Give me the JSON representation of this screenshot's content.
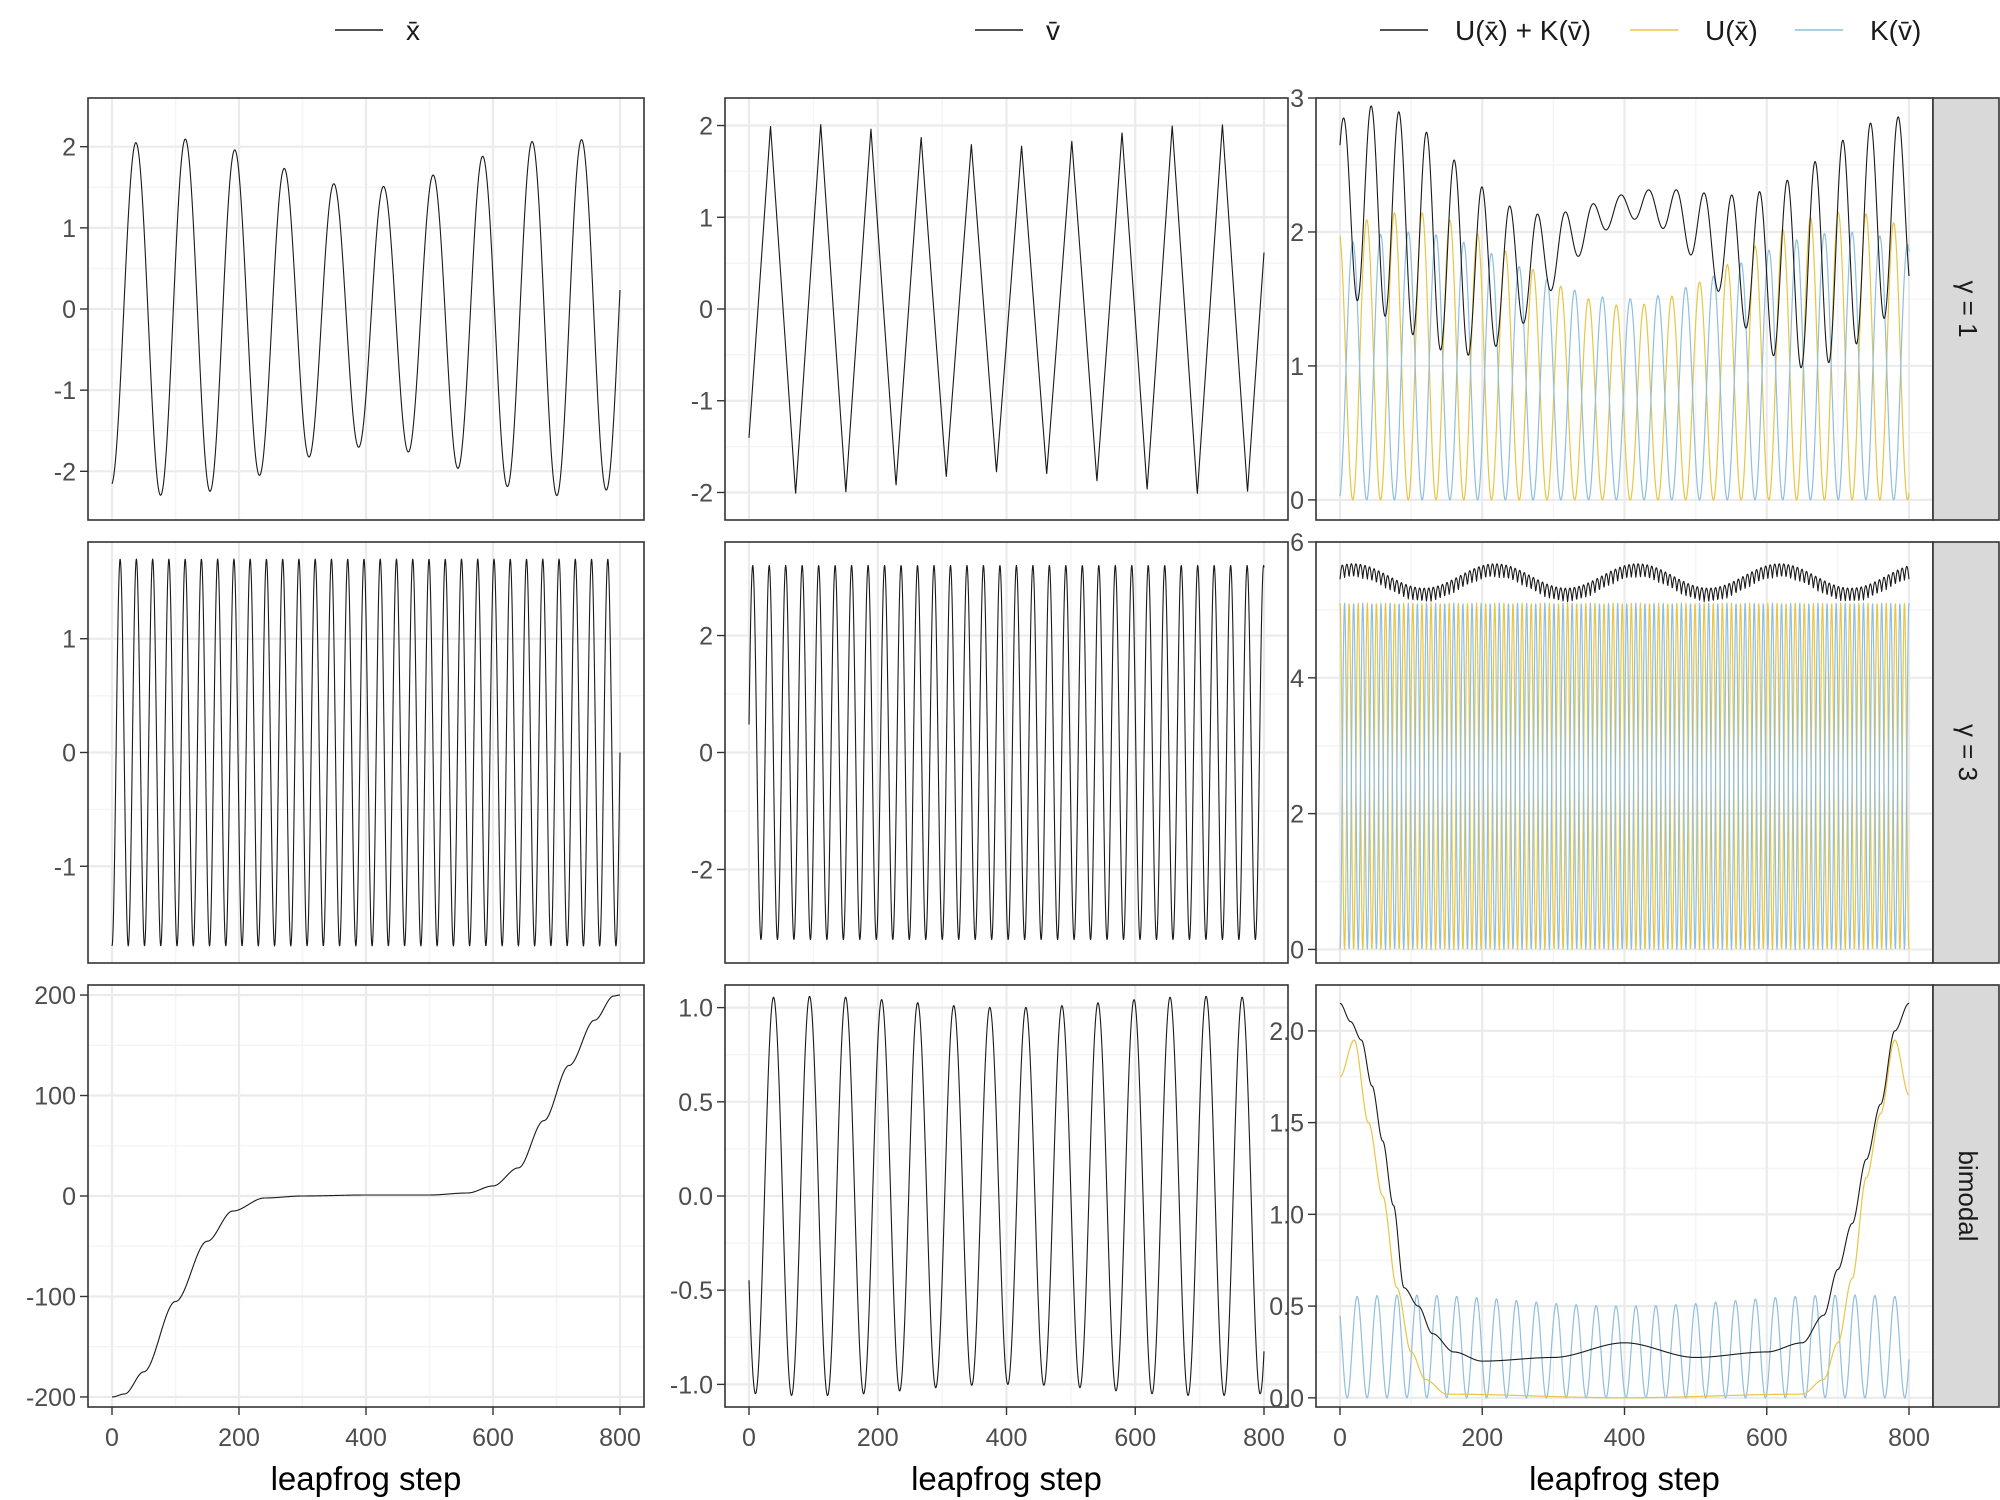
{
  "colors": {
    "black": "#1a1a1a",
    "yellow": "#E8C547",
    "blue": "#8FBFDF",
    "strip_bg": "#D9D9D9",
    "grid_major": "#ebebeb",
    "grid_minor": "#f5f5f5",
    "panel_border": "#333333"
  },
  "legends": [
    {
      "entries": [
        {
          "label": "x̄",
          "color": "#1a1a1a"
        }
      ]
    },
    {
      "entries": [
        {
          "label": "v̄",
          "color": "#1a1a1a"
        }
      ]
    },
    {
      "entries": [
        {
          "label": "U(x̄) + K(v̄)",
          "color": "#1a1a1a"
        },
        {
          "label": "U(x̄)",
          "color": "#E8C547"
        },
        {
          "label": "K(v̄)",
          "color": "#8FBFDF"
        }
      ]
    }
  ],
  "xlabels": [
    "leapfrog step",
    "leapfrog step",
    "leapfrog step"
  ],
  "x_ticks": [
    0,
    200,
    400,
    600,
    800
  ],
  "strip_labels": [
    "γ = 1",
    "γ = 3",
    "bimodal"
  ],
  "chart_data": {
    "type": "line",
    "x_range": [
      0,
      800
    ],
    "panels": [
      {
        "row": 0,
        "col": 0,
        "ylim": [
          -2.6,
          2.6
        ],
        "yticks": [
          -2,
          -1,
          0,
          1,
          2
        ],
        "ytick_labels": [
          "-2",
          "-1",
          "0",
          "1",
          "2"
        ],
        "series": [
          {
            "name": "x̄",
            "color": "#1a1a1a",
            "kind": "sine",
            "x0": 0,
            "x1": 800,
            "offset": -0.1,
            "amp": 1.9,
            "amp_var": 0.3,
            "period": 78,
            "phase": -1.45
          }
        ]
      },
      {
        "row": 0,
        "col": 1,
        "ylim": [
          -2.3,
          2.3
        ],
        "yticks": [
          -2,
          -1,
          0,
          1,
          2
        ],
        "ytick_labels": [
          "-2",
          "-1",
          "0",
          "1",
          "2"
        ],
        "series": [
          {
            "name": "v̄",
            "color": "#1a1a1a",
            "kind": "tri",
            "x0": 0,
            "x1": 800,
            "offset": 0.0,
            "amp": 1.9,
            "amp_var": 0.12,
            "period": 78,
            "phase": 0.45
          }
        ]
      },
      {
        "row": 0,
        "col": 2,
        "ylim": [
          -0.15,
          3.0
        ],
        "yticks": [
          0,
          1,
          2,
          3
        ],
        "ytick_labels": [
          "0",
          "1",
          "2",
          "3"
        ],
        "series": [
          {
            "name": "U(x̄)",
            "color": "#E8C547",
            "kind": "sinsq",
            "x0": 0,
            "x1": 800,
            "amp": 1.8,
            "amp_var": 0.35,
            "period": 78,
            "phase": -1.45
          },
          {
            "name": "K(v̄)",
            "color": "#8FBFDF",
            "kind": "cossq",
            "x0": 0,
            "x1": 800,
            "amp": 1.75,
            "amp_var": 0.25,
            "period": 78,
            "phase": -1.45
          },
          {
            "name": "U(x̄) + K(v̄)",
            "color": "#1a1a1a",
            "kind": "envelope",
            "x0": 0,
            "x1": 800,
            "offset": 1.95,
            "amp": 0.45,
            "amp_var": 0.35,
            "period": 39,
            "phase": 0.8
          }
        ]
      },
      {
        "row": 1,
        "col": 0,
        "ylim": [
          -1.85,
          1.85
        ],
        "yticks": [
          -1,
          0,
          1
        ],
        "ytick_labels": [
          "-1",
          "0",
          "1"
        ],
        "series": [
          {
            "name": "x̄",
            "color": "#1a1a1a",
            "kind": "sine",
            "x0": 0,
            "x1": 800,
            "offset": 0.0,
            "amp": 1.7,
            "amp_var": 0.0,
            "period": 25.6,
            "phase": -1.57
          }
        ]
      },
      {
        "row": 1,
        "col": 1,
        "ylim": [
          -3.6,
          3.6
        ],
        "yticks": [
          -2,
          0,
          2
        ],
        "ytick_labels": [
          "-2",
          "0",
          "2"
        ],
        "series": [
          {
            "name": "v̄",
            "color": "#1a1a1a",
            "kind": "sine",
            "x0": 0,
            "x1": 800,
            "offset": 0.0,
            "amp": 3.2,
            "amp_var": 0.0,
            "period": 25.6,
            "phase": 0.15
          }
        ]
      },
      {
        "row": 1,
        "col": 2,
        "ylim": [
          -0.2,
          6.0
        ],
        "yticks": [
          0,
          2,
          4,
          6
        ],
        "ytick_labels": [
          "0",
          "2",
          "4",
          "6"
        ],
        "series": [
          {
            "name": "U(x̄)",
            "color": "#E8C547",
            "kind": "sinsq",
            "x0": 0,
            "x1": 800,
            "amp": 5.1,
            "amp_var": 0.0,
            "period": 25.6,
            "phase": -1.57
          },
          {
            "name": "K(v̄)",
            "color": "#8FBFDF",
            "kind": "cossq",
            "x0": 0,
            "x1": 800,
            "amp": 5.1,
            "amp_var": 0.0,
            "period": 25.6,
            "phase": -1.57
          },
          {
            "name": "U(x̄) + K(v̄)",
            "color": "#1a1a1a",
            "kind": "beat",
            "x0": 0,
            "x1": 800,
            "offset": 5.3,
            "amp": 0.2,
            "amp_var": 0.0,
            "period": 12.8,
            "phase": 0,
            "beat_period": 400
          }
        ]
      },
      {
        "row": 2,
        "col": 0,
        "ylim": [
          -210,
          210
        ],
        "yticks": [
          -200,
          -100,
          0,
          100,
          200
        ],
        "ytick_labels": [
          "-200",
          "-100",
          "0",
          "100",
          "200"
        ],
        "series": [
          {
            "name": "x̄",
            "color": "#1a1a1a",
            "kind": "points",
            "x0": 0,
            "x1": 800,
            "x": [
              0,
              20,
              50,
              100,
              150,
              190,
              240,
              300,
              400,
              500,
              560,
              600,
              640,
              680,
              720,
              760,
              790,
              800
            ],
            "y": [
              -200,
              -197,
              -175,
              -105,
              -45,
              -15,
              -2,
              0,
              1,
              1,
              3,
              10,
              28,
              75,
              130,
              175,
              199,
              200
            ]
          }
        ]
      },
      {
        "row": 2,
        "col": 1,
        "ylim": [
          -1.12,
          1.12
        ],
        "yticks": [
          -1.0,
          -0.5,
          0.0,
          0.5,
          1.0
        ],
        "ytick_labels": [
          "-1.0",
          "-0.5",
          "0.0",
          "0.5",
          "1.0"
        ],
        "series": [
          {
            "name": "v̄",
            "color": "#1a1a1a",
            "kind": "sine",
            "x0": 0,
            "x1": 800,
            "offset": 0.0,
            "amp": 1.03,
            "amp_var": 0.03,
            "period": 56,
            "phase": -2.7
          }
        ]
      },
      {
        "row": 2,
        "col": 2,
        "ylim": [
          -0.05,
          2.25
        ],
        "yticks": [
          0.0,
          0.5,
          1.0,
          1.5,
          2.0
        ],
        "ytick_labels": [
          "0.0",
          "0.5",
          "1.0",
          "1.5",
          "2.0"
        ],
        "series": [
          {
            "name": "K(v̄)",
            "color": "#8FBFDF",
            "kind": "cossq",
            "x0": 0,
            "x1": 800,
            "amp": 0.53,
            "amp_var": 0.03,
            "period": 56,
            "phase": -2.7
          },
          {
            "name": "U(x̄)",
            "color": "#E8C547",
            "kind": "points",
            "x0": 0,
            "x1": 800,
            "x": [
              0,
              20,
              40,
              60,
              80,
              100,
              120,
              150,
              400,
              650,
              680,
              700,
              720,
              740,
              760,
              780,
              800
            ],
            "y": [
              1.75,
              1.95,
              1.5,
              1.1,
              0.6,
              0.25,
              0.1,
              0.02,
              0.0,
              0.02,
              0.1,
              0.3,
              0.65,
              1.2,
              1.55,
              1.95,
              1.65
            ]
          },
          {
            "name": "U(x̄) + K(v̄)",
            "color": "#1a1a1a",
            "kind": "points",
            "x0": 0,
            "x1": 800,
            "x": [
              0,
              15,
              30,
              45,
              60,
              75,
              90,
              110,
              130,
              160,
              200,
              300,
              400,
              500,
              600,
              650,
              680,
              700,
              720,
              740,
              760,
              780,
              800
            ],
            "y": [
              2.15,
              2.05,
              1.95,
              1.7,
              1.4,
              1.05,
              0.6,
              0.5,
              0.35,
              0.25,
              0.2,
              0.22,
              0.3,
              0.22,
              0.25,
              0.3,
              0.45,
              0.7,
              0.95,
              1.3,
              1.6,
              2.0,
              2.15
            ]
          }
        ]
      }
    ]
  }
}
